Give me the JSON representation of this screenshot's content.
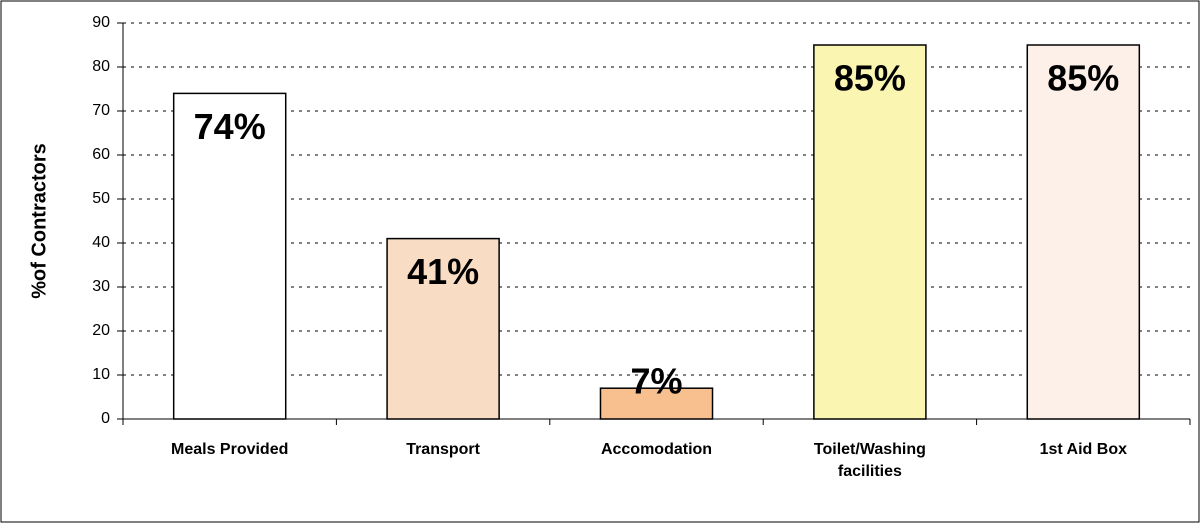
{
  "chart_data": {
    "type": "bar",
    "y_label": "%of Contractors",
    "categories": [
      "Meals Provided",
      "Transport",
      "Accomodation",
      "Toilet/Washing facilities",
      "1st Aid Box"
    ],
    "values": [
      74,
      41,
      7,
      85,
      85
    ],
    "value_labels": [
      "74%",
      "41%",
      "7%",
      "85%",
      "85%"
    ],
    "colors": [
      "#ffffff",
      "#f8dcc4",
      "#f9c08f",
      "#faf5b0",
      "#fdf0e8"
    ],
    "ylim": [
      0,
      90
    ],
    "yticks": [
      0,
      10,
      20,
      30,
      40,
      50,
      60,
      70,
      80,
      90
    ],
    "grid": true
  }
}
